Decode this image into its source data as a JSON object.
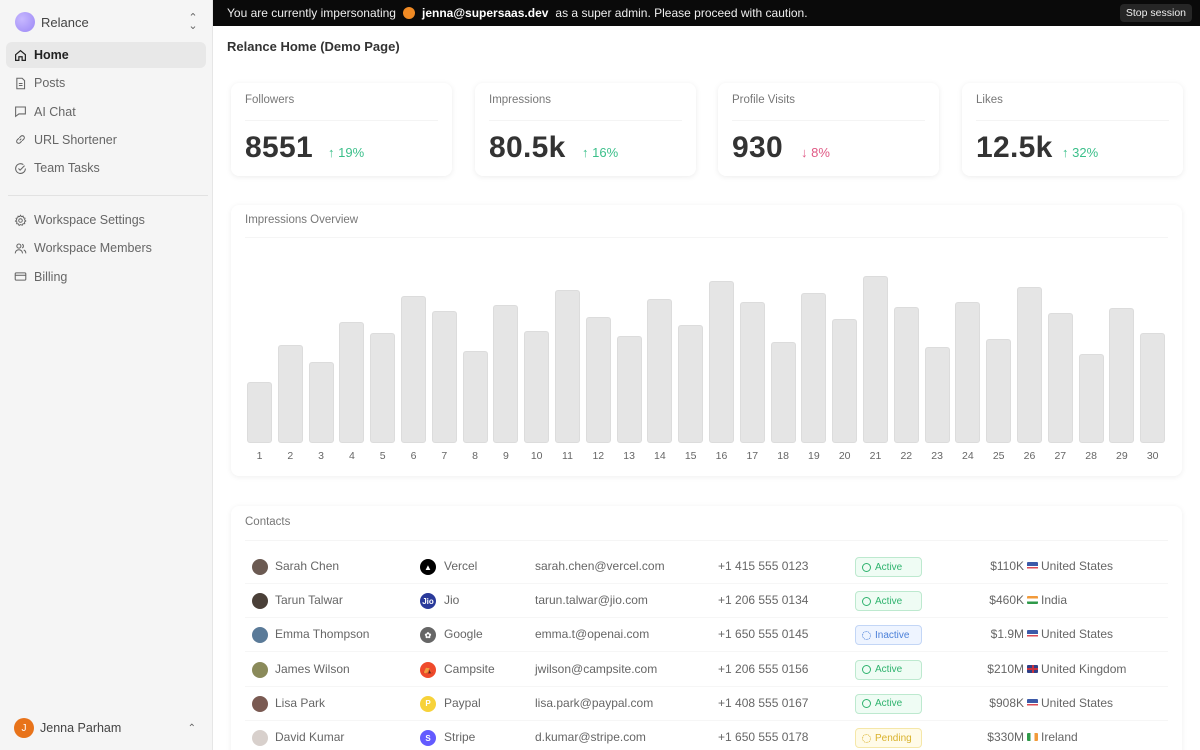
{
  "sidebar": {
    "workspace": {
      "name": "Relance",
      "logo_color": "#a593f7"
    },
    "primary_nav": [
      {
        "label": "Home",
        "icon": "home-icon",
        "active": true
      },
      {
        "label": "Posts",
        "icon": "document-icon",
        "active": false
      },
      {
        "label": "AI Chat",
        "icon": "chat-icon",
        "active": false
      },
      {
        "label": "URL Shortener",
        "icon": "link-icon",
        "active": false
      },
      {
        "label": "Team Tasks",
        "icon": "check-circle-icon",
        "active": false
      }
    ],
    "secondary_nav": [
      {
        "label": "Workspace Settings",
        "icon": "gear-icon"
      },
      {
        "label": "Workspace Members",
        "icon": "users-icon"
      },
      {
        "label": "Billing",
        "icon": "credit-card-icon"
      }
    ],
    "user": {
      "name": "Jenna Parham",
      "initial": "J",
      "avatar_color": "#e8731a"
    }
  },
  "banner": {
    "prefix": "You are currently impersonating",
    "email": "jenna@supersaas.dev",
    "suffix": "as a super admin. Please proceed with caution.",
    "stop_label": "Stop session"
  },
  "page": {
    "title": "Relance Home (Demo Page)"
  },
  "stats": [
    {
      "label": "Followers",
      "value": "8551",
      "delta": "19%",
      "direction": "up"
    },
    {
      "label": "Impressions",
      "value": "80.5k",
      "delta": "16%",
      "direction": "up"
    },
    {
      "label": "Profile Visits",
      "value": "930",
      "delta": "8%",
      "direction": "down"
    },
    {
      "label": "Likes",
      "value": "12.5k",
      "delta": "32%",
      "direction": "up"
    }
  ],
  "chart": {
    "title": "Impressions Overview"
  },
  "chart_data": {
    "type": "bar",
    "title": "Impressions Overview",
    "xlabel": "",
    "ylabel": "",
    "categories": [
      "1",
      "2",
      "3",
      "4",
      "5",
      "6",
      "7",
      "8",
      "9",
      "10",
      "11",
      "12",
      "13",
      "14",
      "15",
      "16",
      "17",
      "18",
      "19",
      "20",
      "21",
      "22",
      "23",
      "24",
      "25",
      "26",
      "27",
      "28",
      "29",
      "30"
    ],
    "values": [
      61,
      98,
      81,
      121,
      110,
      147,
      132,
      92,
      138,
      112,
      153,
      126,
      107,
      144,
      118,
      162,
      141,
      101,
      150,
      124,
      167,
      136,
      96,
      141,
      104,
      156,
      130,
      89,
      135,
      110
    ],
    "grid": false,
    "legend": null,
    "ylim": [
      0,
      198
    ]
  },
  "contacts": {
    "title": "Contacts",
    "rows": [
      {
        "name": "Sarah Chen",
        "avatar_color": "#6b5a52",
        "company": "Vercel",
        "logo": "▲",
        "logo_color": "#000000",
        "email": "sarah.chen@vercel.com",
        "phone": "+1 415 555 0123",
        "status": "Active",
        "status_type": "active",
        "revenue": "$110K",
        "country": "United States",
        "flag": "us"
      },
      {
        "name": "Tarun Talwar",
        "avatar_color": "#4a4038",
        "company": "Jio",
        "logo": "Jio",
        "logo_color": "#2a3a9a",
        "email": "tarun.talwar@jio.com",
        "phone": "+1 206 555 0134",
        "status": "Active",
        "status_type": "active",
        "revenue": "$460K",
        "country": "India",
        "flag": "in"
      },
      {
        "name": "Emma Thompson",
        "avatar_color": "#5a7a98",
        "company": "Google",
        "logo": "✿",
        "logo_color": "#666666",
        "email": "emma.t@openai.com",
        "phone": "+1 650 555 0145",
        "status": "Inactive",
        "status_type": "inactive",
        "revenue": "$1.9M",
        "country": "United States",
        "flag": "us"
      },
      {
        "name": "James Wilson",
        "avatar_color": "#8a8a5a",
        "company": "Campsite",
        "logo": "⛺",
        "logo_color": "#ef4a2b",
        "email": "jwilson@campsite.com",
        "phone": "+1 206 555 0156",
        "status": "Active",
        "status_type": "active",
        "revenue": "$210M",
        "country": "United Kingdom",
        "flag": "uk"
      },
      {
        "name": "Lisa Park",
        "avatar_color": "#7a5a52",
        "company": "Paypal",
        "logo": "P",
        "logo_color": "#f7d23a",
        "email": "lisa.park@paypal.com",
        "phone": "+1 408 555 0167",
        "status": "Active",
        "status_type": "active",
        "revenue": "$908K",
        "country": "United States",
        "flag": "us"
      },
      {
        "name": "David Kumar",
        "avatar_color": "#d8d0cc",
        "company": "Stripe",
        "logo": "S",
        "logo_color": "#635bff",
        "email": "d.kumar@stripe.com",
        "phone": "+1 650 555 0178",
        "status": "Pending",
        "status_type": "pending",
        "revenue": "$330M",
        "country": "Ireland",
        "flag": "ie"
      }
    ]
  },
  "colors": {
    "positive": "#3bbf8a",
    "negative": "#e05a85",
    "bar": "#e5e5e5",
    "banner_bg": "#0a0a0a"
  }
}
